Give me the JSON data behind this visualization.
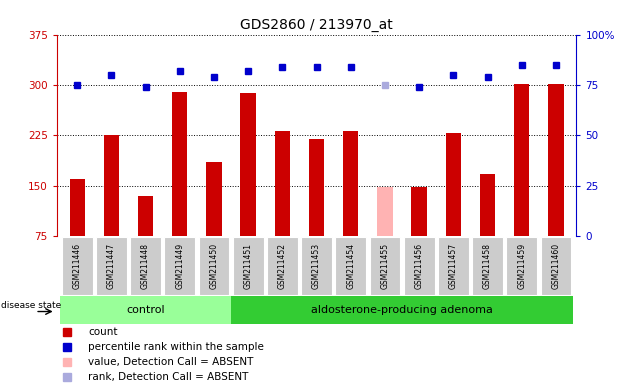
{
  "title": "GDS2860 / 213970_at",
  "samples": [
    "GSM211446",
    "GSM211447",
    "GSM211448",
    "GSM211449",
    "GSM211450",
    "GSM211451",
    "GSM211452",
    "GSM211453",
    "GSM211454",
    "GSM211455",
    "GSM211456",
    "GSM211457",
    "GSM211458",
    "GSM211459",
    "GSM211460"
  ],
  "counts": [
    160,
    225,
    135,
    290,
    185,
    288,
    232,
    220,
    232,
    148,
    148,
    228,
    168,
    302,
    302
  ],
  "percentile_ranks": [
    75,
    80,
    74,
    82,
    79,
    82,
    84,
    84,
    84,
    75,
    74,
    80,
    79,
    85,
    85
  ],
  "absent_flags": [
    false,
    false,
    false,
    false,
    false,
    false,
    false,
    false,
    false,
    true,
    false,
    false,
    false,
    false,
    false
  ],
  "ylim_left": [
    75,
    375
  ],
  "ylim_right": [
    0,
    100
  ],
  "yticks_left": [
    75,
    150,
    225,
    300,
    375
  ],
  "yticks_right": [
    0,
    25,
    50,
    75,
    100
  ],
  "control_count": 5,
  "bar_color_normal": "#cc0000",
  "bar_color_absent": "#ffb3b3",
  "dot_color_normal": "#0000cc",
  "dot_color_absent": "#aaaadd",
  "background_color": "#ffffff",
  "control_group_color": "#99ff99",
  "adenoma_group_color": "#33cc33",
  "sample_bg_color": "#cccccc",
  "legend_items": [
    {
      "label": "count",
      "color": "#cc0000"
    },
    {
      "label": "percentile rank within the sample",
      "color": "#0000cc"
    },
    {
      "label": "value, Detection Call = ABSENT",
      "color": "#ffb3b3"
    },
    {
      "label": "rank, Detection Call = ABSENT",
      "color": "#aaaadd"
    }
  ]
}
